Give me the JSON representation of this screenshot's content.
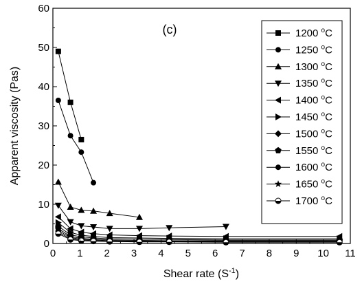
{
  "chart_data": {
    "type": "line",
    "title": "",
    "panel_label": "(c)",
    "xlabel_parts": {
      "main": "Shear rate (S",
      "sup": "-1",
      "end": ")"
    },
    "ylabel": "Apparent viscosity (Pas)",
    "xlim": [
      0,
      11
    ],
    "ylim": [
      0,
      60
    ],
    "xticks": [
      0,
      1,
      2,
      3,
      4,
      5,
      6,
      7,
      8,
      9,
      10,
      11
    ],
    "yticks": [
      0,
      10,
      20,
      30,
      40,
      50,
      60
    ],
    "grid": false,
    "legend_position": "top-right",
    "unit_prefix": "o",
    "unit_suffix": "C",
    "series": [
      {
        "name": "1200",
        "marker": "square",
        "x": [
          0.2,
          0.65,
          1.05
        ],
        "y": [
          49.0,
          36.0,
          26.5
        ]
      },
      {
        "name": "1250",
        "marker": "circle",
        "x": [
          0.2,
          0.65,
          1.05,
          1.5
        ],
        "y": [
          36.5,
          27.5,
          23.3,
          15.5
        ]
      },
      {
        "name": "1300",
        "marker": "triangle-up",
        "x": [
          0.2,
          0.65,
          1.05,
          1.5,
          2.1,
          3.2
        ],
        "y": [
          15.7,
          9.3,
          8.5,
          8.3,
          7.7,
          6.7
        ]
      },
      {
        "name": "1350",
        "marker": "triangle-down",
        "x": [
          0.2,
          0.65,
          1.05,
          1.5,
          2.1,
          3.2,
          4.3,
          6.4
        ],
        "y": [
          9.7,
          5.5,
          4.5,
          4.2,
          3.8,
          3.8,
          4.0,
          4.3
        ]
      },
      {
        "name": "1400",
        "marker": "triangle-left",
        "x": [
          0.2,
          0.65,
          1.05,
          1.5,
          2.1,
          3.2,
          4.3,
          6.4,
          10.6
        ],
        "y": [
          6.8,
          3.8,
          2.9,
          2.5,
          2.2,
          2.0,
          1.9,
          1.8,
          1.8
        ]
      },
      {
        "name": "1450",
        "marker": "triangle-right",
        "x": [
          0.2,
          0.65,
          1.05,
          1.5,
          2.1,
          3.2,
          4.3,
          6.4,
          10.6
        ],
        "y": [
          5.3,
          2.8,
          2.1,
          1.8,
          1.5,
          1.4,
          1.3,
          1.2,
          1.2
        ]
      },
      {
        "name": "1500",
        "marker": "diamond",
        "x": [
          0.2,
          0.65,
          1.05,
          1.5,
          2.1,
          3.2,
          4.3,
          6.4,
          10.6
        ],
        "y": [
          4.4,
          2.2,
          1.7,
          1.4,
          1.2,
          1.1,
          1.0,
          0.9,
          0.9
        ]
      },
      {
        "name": "1550",
        "marker": "pentagon",
        "x": [
          0.2,
          0.65,
          1.05,
          1.5,
          2.1,
          3.2,
          4.3,
          6.4,
          10.6
        ],
        "y": [
          3.8,
          1.8,
          1.3,
          1.1,
          0.9,
          0.8,
          0.7,
          0.7,
          0.7
        ]
      },
      {
        "name": "1600",
        "marker": "circle",
        "x": [
          0.2,
          0.65,
          1.05,
          1.5,
          2.1,
          3.2,
          4.3,
          6.4,
          10.6
        ],
        "y": [
          3.3,
          1.5,
          1.1,
          0.9,
          0.7,
          0.6,
          0.6,
          0.5,
          0.5
        ]
      },
      {
        "name": "1650",
        "marker": "star",
        "x": [
          0.2,
          0.65,
          1.05,
          1.5,
          2.1,
          3.2,
          4.3,
          6.4,
          10.6
        ],
        "y": [
          2.9,
          1.2,
          0.9,
          0.7,
          0.6,
          0.5,
          0.5,
          0.4,
          0.4
        ]
      },
      {
        "name": "1700",
        "marker": "half-circle",
        "x": [
          0.2,
          0.65,
          1.05,
          1.5,
          2.1,
          3.2,
          4.3,
          6.4,
          10.6
        ],
        "y": [
          2.5,
          1.0,
          0.7,
          0.6,
          0.5,
          0.4,
          0.4,
          0.3,
          0.3
        ]
      }
    ]
  }
}
